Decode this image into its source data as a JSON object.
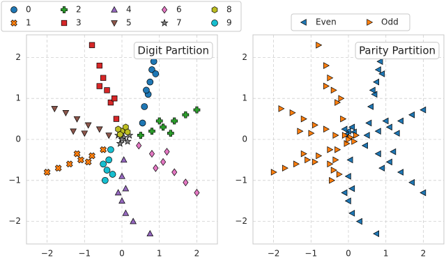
{
  "chart_data": [
    {
      "type": "scatter",
      "title": "Digit Partition",
      "grid": true,
      "legend": "above",
      "xlim": [
        -2.55,
        2.55
      ],
      "ylim": [
        -2.55,
        2.55
      ],
      "xticks": [
        {
          "value": -2,
          "label": "−2"
        },
        {
          "value": -1,
          "label": "−1"
        },
        0,
        1,
        2
      ],
      "yticks": [
        {
          "value": -2,
          "label": "−2"
        },
        {
          "value": -1,
          "label": "−1"
        },
        0,
        1,
        2
      ],
      "series": [
        {
          "name": "0",
          "color": "#1f77b4",
          "marker": "circle",
          "x": [
            0.55,
            0.6,
            0.7,
            0.75,
            0.8,
            0.85,
            0.65,
            0.9
          ],
          "y": [
            0.4,
            0.8,
            1.1,
            1.4,
            1.7,
            1.9,
            1.2,
            1.6
          ]
        },
        {
          "name": "1",
          "color": "#ff7f0e",
          "marker": "x",
          "x": [
            -0.5,
            -0.8,
            -1.1,
            -1.4,
            -1.7,
            -2.0,
            -1.2,
            -0.9
          ],
          "y": [
            -0.25,
            -0.4,
            -0.5,
            -0.6,
            -0.7,
            -0.8,
            -0.35,
            -0.55
          ]
        },
        {
          "name": "2",
          "color": "#2ca02c",
          "marker": "plus",
          "x": [
            0.5,
            0.8,
            1.1,
            1.4,
            1.7,
            2.0,
            1.0,
            1.3
          ],
          "y": [
            0.1,
            0.2,
            0.3,
            0.45,
            0.6,
            0.72,
            0.45,
            0.15
          ]
        },
        {
          "name": "3",
          "color": "#d62728",
          "marker": "square",
          "x": [
            -0.15,
            -0.3,
            -0.4,
            -0.5,
            -0.6,
            -0.8,
            -0.2,
            -0.6
          ],
          "y": [
            0.5,
            0.9,
            1.2,
            1.5,
            1.8,
            2.3,
            1.0,
            1.3
          ]
        },
        {
          "name": "4",
          "color": "#9467bd",
          "marker": "triangle-up",
          "x": [
            0.05,
            0.0,
            0.1,
            0.0,
            0.1,
            0.3,
            -0.1,
            0.75
          ],
          "y": [
            -0.5,
            -0.9,
            -1.2,
            -1.5,
            -1.8,
            -2.0,
            -1.3,
            -2.3
          ]
        },
        {
          "name": "5",
          "color": "#8c564b",
          "marker": "triangle-down",
          "x": [
            -0.35,
            -0.6,
            -0.9,
            -1.2,
            -1.5,
            -1.8,
            -1.0,
            -1.3
          ],
          "y": [
            0.1,
            0.25,
            0.35,
            0.5,
            0.65,
            0.75,
            0.15,
            0.2
          ]
        },
        {
          "name": "6",
          "color": "#e377c2",
          "marker": "diamond",
          "x": [
            0.45,
            0.8,
            1.1,
            1.4,
            1.7,
            2.0,
            0.9,
            1.2
          ],
          "y": [
            -0.15,
            -0.35,
            -0.55,
            -0.8,
            -1.05,
            -1.3,
            -0.7,
            -0.3
          ]
        },
        {
          "name": "7",
          "color": "#7f7f7f",
          "marker": "star",
          "x": [
            0.05,
            -0.05,
            0.15,
            -0.1,
            0.0,
            0.2
          ],
          "y": [
            0.05,
            -0.1,
            -0.05,
            0.1,
            0.0,
            0.1
          ]
        },
        {
          "name": "8",
          "color": "#bcbd22",
          "marker": "hexagon",
          "x": [
            0.0,
            -0.1,
            0.1,
            0.15,
            -0.05
          ],
          "y": [
            0.2,
            0.25,
            0.3,
            0.18,
            0.12
          ]
        },
        {
          "name": "9",
          "color": "#17becf",
          "marker": "circle",
          "x": [
            -0.3,
            -0.35,
            -0.4,
            -0.45,
            -0.25,
            -0.5
          ],
          "y": [
            -0.25,
            -0.5,
            -0.75,
            -1.0,
            -0.85,
            -0.6
          ]
        }
      ]
    },
    {
      "type": "scatter",
      "title": "Parity Partition",
      "grid": true,
      "legend": "above",
      "xlim": [
        -2.55,
        2.55
      ],
      "ylim": [
        -2.55,
        2.55
      ],
      "xticks": [
        {
          "value": -2,
          "label": "−2"
        },
        {
          "value": -1,
          "label": "−1"
        },
        0,
        1,
        2
      ],
      "yticks": [
        {
          "value": -2,
          "label": "−2"
        },
        {
          "value": -1,
          "label": "−1"
        },
        0,
        1,
        2
      ],
      "series": [
        {
          "name": "Even",
          "color": "#1f77b4",
          "marker": "triangle-left",
          "x": [
            0.55,
            0.6,
            0.7,
            0.75,
            0.8,
            0.85,
            0.65,
            0.9,
            0.5,
            0.8,
            1.1,
            1.4,
            1.7,
            2.0,
            1.0,
            1.3,
            0.05,
            0.0,
            0.1,
            0.0,
            0.1,
            0.3,
            -0.1,
            0.75,
            0.45,
            0.8,
            1.1,
            1.4,
            1.7,
            2.0,
            0.9,
            1.2,
            0.0,
            -0.1,
            0.1,
            0.15,
            -0.05
          ],
          "y": [
            0.4,
            0.8,
            1.1,
            1.4,
            1.7,
            1.9,
            1.2,
            1.6,
            0.1,
            0.2,
            0.3,
            0.45,
            0.6,
            0.72,
            0.45,
            0.15,
            -0.5,
            -0.9,
            -1.2,
            -1.5,
            -1.8,
            -2.0,
            -1.3,
            -2.3,
            -0.15,
            -0.35,
            -0.55,
            -0.8,
            -1.05,
            -1.3,
            -0.7,
            -0.3,
            0.2,
            0.25,
            0.3,
            0.18,
            0.12
          ]
        },
        {
          "name": "Odd",
          "color": "#ff7f0e",
          "marker": "triangle-right",
          "x": [
            -0.5,
            -0.8,
            -1.1,
            -1.4,
            -1.7,
            -2.0,
            -1.2,
            -0.9,
            -0.15,
            -0.3,
            -0.4,
            -0.5,
            -0.6,
            -0.8,
            -0.2,
            -0.6,
            -0.35,
            -0.6,
            -0.9,
            -1.2,
            -1.5,
            -1.8,
            -1.0,
            -1.3,
            0.05,
            -0.05,
            0.15,
            -0.1,
            0.0,
            0.2,
            -0.3,
            -0.35,
            -0.4,
            -0.45,
            -0.25,
            -0.5
          ],
          "y": [
            -0.25,
            -0.4,
            -0.5,
            -0.6,
            -0.7,
            -0.8,
            -0.35,
            -0.55,
            0.5,
            0.9,
            1.2,
            1.5,
            1.8,
            2.3,
            1.0,
            1.3,
            0.1,
            0.25,
            0.35,
            0.5,
            0.65,
            0.75,
            0.15,
            0.2,
            0.05,
            -0.1,
            -0.05,
            0.1,
            0.0,
            0.1,
            -0.25,
            -0.5,
            -0.75,
            -1.0,
            -0.85,
            -0.6
          ]
        }
      ]
    }
  ]
}
